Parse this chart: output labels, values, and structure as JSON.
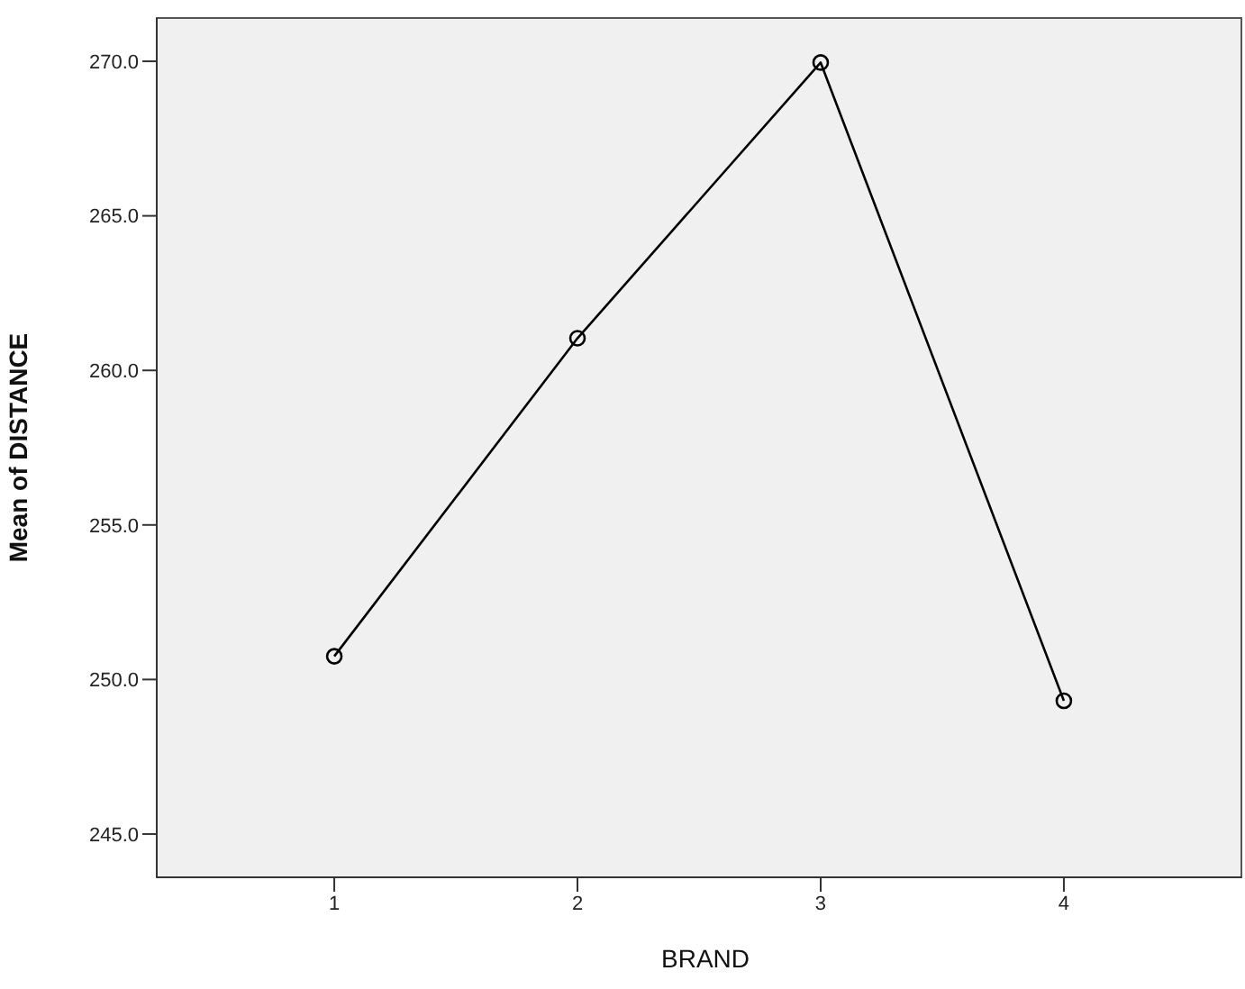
{
  "chart_data": {
    "type": "line",
    "xlabel": "BRAND",
    "ylabel": "Mean of DISTANCE",
    "x": [
      1,
      2,
      3,
      4
    ],
    "series": [
      {
        "color": "#000000",
        "values": [
          250.75,
          261.04,
          269.96,
          249.31
        ]
      }
    ],
    "xlim": [
      0.27,
      4.73
    ],
    "xticks": [
      1,
      2,
      3,
      4
    ],
    "ylim": [
      243.6,
      271.4
    ],
    "yticks": [
      {
        "value": 245,
        "label": "245.0"
      },
      {
        "value": 250,
        "label": "250.0"
      },
      {
        "value": 255,
        "label": "255.0"
      },
      {
        "value": 260,
        "label": "260.0"
      },
      {
        "value": 265,
        "label": "265.0"
      },
      {
        "value": 270,
        "label": "270.0"
      }
    ],
    "marker": "circle",
    "line_style": "solid",
    "legend": false
  }
}
